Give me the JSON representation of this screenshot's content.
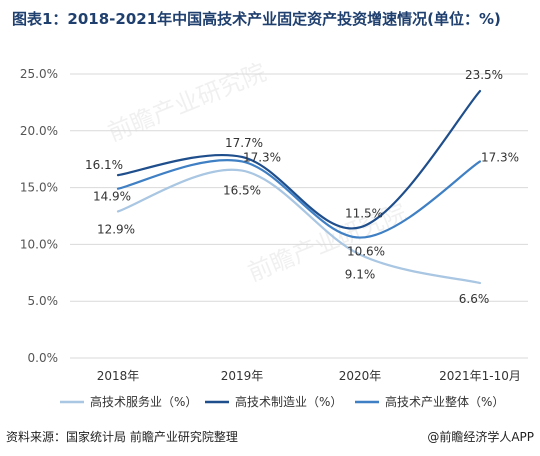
{
  "title": "图表1：2018-2021年中国高技术产业固定资产投资增速情况(单位：%)",
  "footer": {
    "source": "资料来源：国家统计局 前瞻产业研究院整理",
    "brand": "@前瞻经济学人APP"
  },
  "watermark": {
    "text": "前瞻产业研究院"
  },
  "colors": {
    "services": "#a9c6e2",
    "manufacturing": "#1f4e8c",
    "overall": "#3f7fc4",
    "grid": "#d9d9d9",
    "title": "#1f3f6e"
  },
  "chart_data": {
    "type": "line",
    "title": "",
    "xlabel": "",
    "ylabel": "",
    "categories": [
      "2018年",
      "2019年",
      "2020年",
      "2021年1-10月"
    ],
    "ylim": [
      0,
      25
    ],
    "yticks": [
      "0.0%",
      "5.0%",
      "10.0%",
      "15.0%",
      "20.0%",
      "25.0%"
    ],
    "grid": true,
    "legend_position": "bottom",
    "series": [
      {
        "name": "高技术服务业（%）",
        "values": [
          12.9,
          16.5,
          9.1,
          6.6
        ],
        "labels": [
          "12.9%",
          "16.5%",
          "9.1%",
          "6.6%"
        ]
      },
      {
        "name": "高技术制造业（%）",
        "values": [
          16.1,
          17.7,
          11.5,
          23.5
        ],
        "labels": [
          "16.1%",
          "17.7%",
          "11.5%",
          "23.5%"
        ]
      },
      {
        "name": "高技术产业整体（%）",
        "values": [
          14.9,
          17.3,
          10.6,
          17.3
        ],
        "labels": [
          "14.9%",
          "17.3%",
          "10.6%",
          "17.3%"
        ]
      }
    ]
  }
}
